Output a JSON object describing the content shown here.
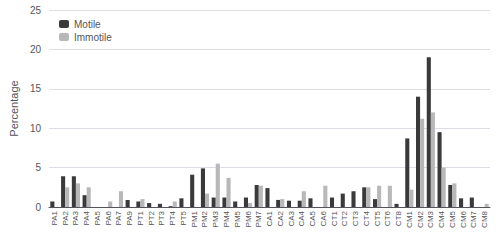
{
  "chart_data": {
    "type": "bar",
    "categories": [
      "PA1",
      "PA2",
      "PA3",
      "PA4",
      "PA5",
      "PA6",
      "PA7",
      "PA9",
      "PT1",
      "PT2",
      "PT3",
      "PT4",
      "PT5",
      "PM1",
      "PM2",
      "PM3",
      "PM4",
      "PM5",
      "PM6",
      "PM7",
      "CA1",
      "CA2",
      "CA3",
      "CA4",
      "CA5",
      "CA6",
      "CT1",
      "CT2",
      "CT3",
      "CT4",
      "CT5",
      "CT6",
      "CT8",
      "CM1",
      "CM2",
      "CM3",
      "CM4",
      "CM5",
      "CM6",
      "CM7",
      "CM8"
    ],
    "series": [
      {
        "name": "Motile",
        "color": "#3a3a3a",
        "values": [
          0.7,
          3.9,
          3.9,
          1.5,
          0.0,
          0.0,
          0.0,
          0.9,
          0.7,
          0.5,
          0.4,
          0.1,
          1.1,
          4.1,
          4.9,
          1.2,
          1.2,
          0.7,
          1.2,
          2.8,
          2.4,
          0.9,
          0.8,
          0.8,
          1.1,
          0.0,
          1.2,
          1.7,
          2.0,
          2.5,
          1.0,
          0.0,
          0.4,
          8.7,
          14.0,
          19.0,
          9.5,
          2.8,
          1.1,
          1.2,
          0.0
        ]
      },
      {
        "name": "Immotile",
        "color": "#b8b8b8",
        "values": [
          0.0,
          2.5,
          3.0,
          2.5,
          0.0,
          0.7,
          2.0,
          0.0,
          1.0,
          0.0,
          0.0,
          0.7,
          0.0,
          0.0,
          1.7,
          5.5,
          3.7,
          0.0,
          0.5,
          2.7,
          0.0,
          1.0,
          0.0,
          2.0,
          0.0,
          2.7,
          0.0,
          0.0,
          0.0,
          2.5,
          2.7,
          2.7,
          0.0,
          2.2,
          11.2,
          12.0,
          5.0,
          3.0,
          0.0,
          0.0,
          0.4
        ]
      }
    ],
    "ylabel": "Percentage",
    "ylim": [
      0,
      25
    ],
    "yticks": [
      0,
      5,
      10,
      15,
      20,
      25
    ],
    "grid": true,
    "legend": "upper left"
  }
}
